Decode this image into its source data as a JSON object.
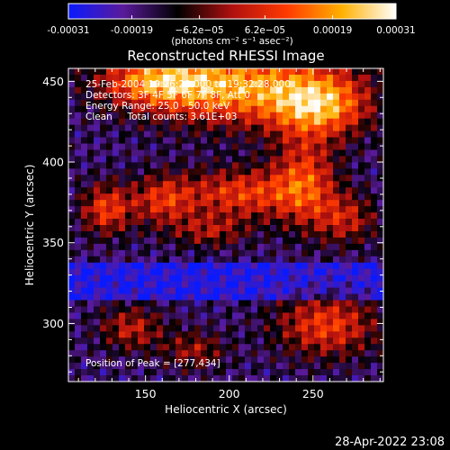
{
  "chart_data": {
    "type": "heatmap",
    "title": "Reconstructed RHESSI Image",
    "colorbar": {
      "ticks": [
        "-0.00031",
        "-0.00019",
        "−6.2e−05",
        "6.2e−05",
        "0.00019",
        "0.00031"
      ],
      "tick_values": [
        -0.00031,
        -0.00019,
        -6.2e-05,
        6.2e-05,
        0.00019,
        0.00031
      ],
      "range": [
        -0.00031,
        0.00031
      ],
      "unit_label": "(photons cm⁻² s⁻¹ asec⁻²)",
      "colormap": [
        "#0a1aff",
        "#5a1a9a",
        "#000000",
        "#b01010",
        "#ff3a00",
        "#ffb000",
        "#ffffff"
      ]
    },
    "xlabel": "Heliocentric X (arcsec)",
    "ylabel": "Heliocentric Y (arcsec)",
    "xlim": [
      104,
      292
    ],
    "ylim": [
      264,
      458
    ],
    "xticks": [
      150,
      200,
      250
    ],
    "yticks": [
      300,
      350,
      400,
      450
    ],
    "annotations": [
      "25-Feb-2004 19:26:28.000 to 19:32:28.000",
      "Detectors: 3F 4F 5F 6F 7F 8F, Att 0",
      "Energy Range: 25.0 - 50.0 keV",
      "Clean     Total counts: 3.61E+03"
    ],
    "peak_label": "Position of Peak = [277,434]",
    "peak": [
      277,
      434
    ]
  },
  "footer": {
    "timestamp": "28-Apr-2022 23:08"
  }
}
